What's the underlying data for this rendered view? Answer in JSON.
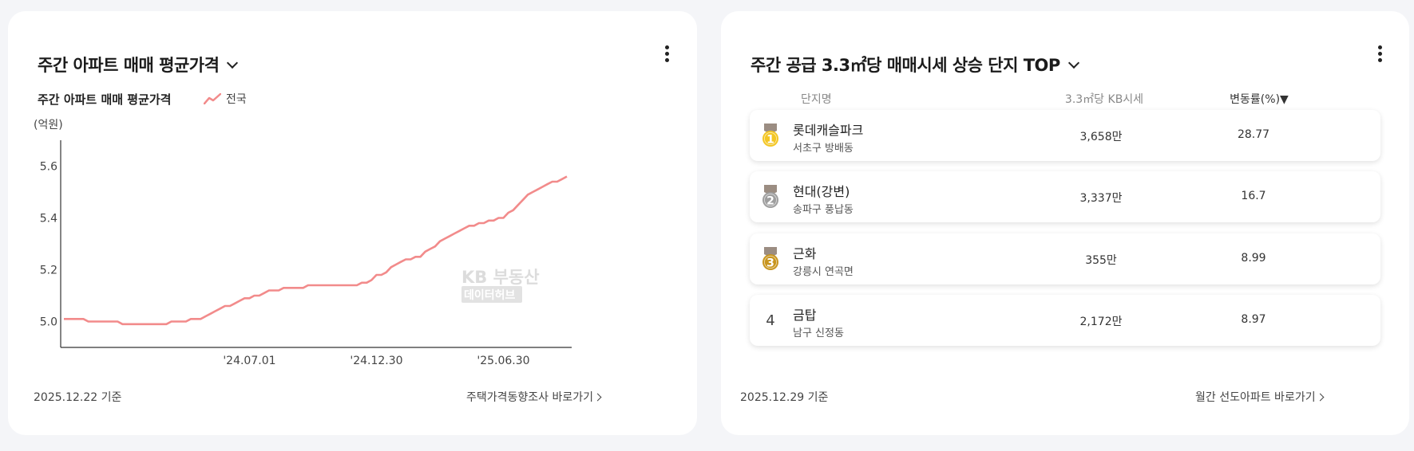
{
  "left_card": {
    "title": "주간 아파트 매매 평균가격",
    "subtitle": "주간 아파트 매매 평균가격",
    "legend_label": "전국",
    "unit_label": "(억원)",
    "watermark_line1": "KB 부동산",
    "watermark_line2": "데이터허브",
    "footer_date": "2025.12.22 기준",
    "footer_link": "주택가격동향조사 바로가기"
  },
  "chart_data": {
    "type": "line",
    "ylabel": "(억원)",
    "ylim": [
      4.9,
      5.7
    ],
    "yticks": [
      "5.0",
      "5.2",
      "5.4",
      "5.6"
    ],
    "xtick_labels": [
      "'24.07.01",
      "'24.12.30",
      "'25.06.30"
    ],
    "xtick_index": [
      38,
      64,
      90
    ],
    "line_color": "#f28b8b",
    "series": [
      {
        "name": "전국",
        "values": [
          5.01,
          5.01,
          5.01,
          5.01,
          5.01,
          5.0,
          5.0,
          5.0,
          5.0,
          5.0,
          5.0,
          5.0,
          4.99,
          4.99,
          4.99,
          4.99,
          4.99,
          4.99,
          4.99,
          4.99,
          4.99,
          4.99,
          5.0,
          5.0,
          5.0,
          5.0,
          5.01,
          5.01,
          5.01,
          5.02,
          5.03,
          5.04,
          5.05,
          5.06,
          5.06,
          5.07,
          5.08,
          5.09,
          5.09,
          5.1,
          5.1,
          5.11,
          5.12,
          5.12,
          5.12,
          5.13,
          5.13,
          5.13,
          5.13,
          5.13,
          5.14,
          5.14,
          5.14,
          5.14,
          5.14,
          5.14,
          5.14,
          5.14,
          5.14,
          5.14,
          5.14,
          5.15,
          5.15,
          5.16,
          5.18,
          5.18,
          5.19,
          5.21,
          5.22,
          5.23,
          5.24,
          5.24,
          5.25,
          5.25,
          5.27,
          5.28,
          5.29,
          5.31,
          5.32,
          5.33,
          5.34,
          5.35,
          5.36,
          5.37,
          5.37,
          5.38,
          5.38,
          5.39,
          5.39,
          5.4,
          5.4,
          5.42,
          5.43,
          5.45,
          5.47,
          5.49,
          5.5,
          5.51,
          5.52,
          5.53,
          5.54,
          5.54,
          5.55,
          5.56
        ]
      }
    ]
  },
  "right_card": {
    "title": "주간 공급 3.3㎡당 매매시세 상승 단지 TOP",
    "col_name": "단지명",
    "col_price": "3.3㎡당 KB시세",
    "col_rate": "변동률(%)▼",
    "rows": [
      {
        "rank": "1",
        "medal": "gold",
        "medal_color": "#f3c623",
        "name": "롯데캐슬파크",
        "address": "서초구 방배동",
        "price": "3,658만",
        "rate": "28.77"
      },
      {
        "rank": "2",
        "medal": "silver",
        "medal_color": "#9e9e9e",
        "name": "현대(강변)",
        "address": "송파구 풍납동",
        "price": "3,337만",
        "rate": "16.7"
      },
      {
        "rank": "3",
        "medal": "bronze",
        "medal_color": "#c8951e",
        "name": "근화",
        "address": "강릉시 연곡면",
        "price": "355만",
        "rate": "8.99"
      },
      {
        "rank": "4",
        "medal": "",
        "name": "금탑",
        "address": "남구 신정동",
        "price": "2,172만",
        "rate": "8.97"
      }
    ],
    "footer_date": "2025.12.29 기준",
    "footer_link": "월간 선도아파트 바로가기"
  }
}
